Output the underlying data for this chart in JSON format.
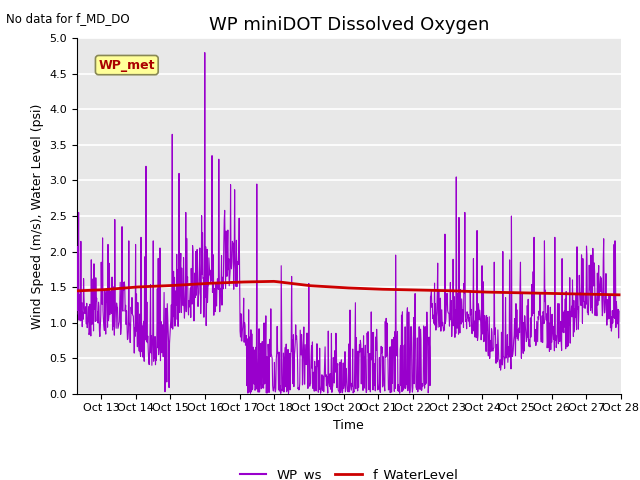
{
  "title": "WP miniDOT Dissolved Oxygen",
  "no_data_text": "No data for f_MD_DO",
  "xlabel": "Time",
  "ylabel": "Wind Speed (m/s), Water Level (psi)",
  "ylim": [
    0.0,
    5.0
  ],
  "yticks": [
    0.0,
    0.5,
    1.0,
    1.5,
    2.0,
    2.5,
    3.0,
    3.5,
    4.0,
    4.5,
    5.0
  ],
  "xtick_labels": [
    "Oct 13",
    "Oct 14",
    "Oct 15",
    "Oct 16",
    "Oct 17",
    "Oct 18",
    "Oct 19",
    "Oct 20",
    "Oct 21",
    "Oct 22",
    "Oct 23",
    "Oct 24",
    "Oct 25",
    "Oct 26",
    "Oct 27",
    "Oct 28"
  ],
  "xtick_positions": [
    13,
    14,
    15,
    16,
    17,
    18,
    19,
    20,
    21,
    22,
    23,
    24,
    25,
    26,
    27,
    28
  ],
  "xlim": [
    12.3,
    28.0
  ],
  "wp_ws_color": "#9900CC",
  "f_waterlevel_color": "#CC0000",
  "background_color": "#E8E8E8",
  "grid_color": "white",
  "legend_box_color": "#FFFF99",
  "legend_box_text": "WP_met",
  "legend_box_text_color": "#AA0000",
  "wp_ws_linewidth": 0.8,
  "f_waterlevel_linewidth": 2.0,
  "title_fontsize": 13,
  "axis_fontsize": 9,
  "tick_fontsize": 8
}
